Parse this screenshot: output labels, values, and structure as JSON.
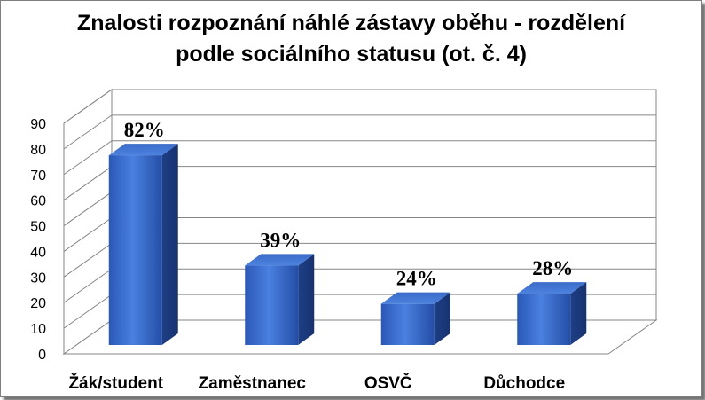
{
  "chart_data": {
    "type": "bar",
    "title_lines": [
      "Znalosti rozpoznání náhlé zástavy oběhu - rozdělení",
      "podle sociálního statusu (ot. č. 4)"
    ],
    "categories": [
      "Žák/student",
      "Zaměstnanec",
      "OSVČ",
      "Důchodce"
    ],
    "values": [
      82,
      39,
      24,
      28
    ],
    "data_labels": [
      "82%",
      "39%",
      "24%",
      "28%"
    ],
    "ylim": [
      0,
      90
    ],
    "yticks": [
      "0",
      "10",
      "20",
      "30",
      "40",
      "50",
      "60",
      "70",
      "80",
      "90"
    ],
    "grid": true,
    "bar_color": "#3366cc",
    "xlabel": "",
    "ylabel": ""
  }
}
